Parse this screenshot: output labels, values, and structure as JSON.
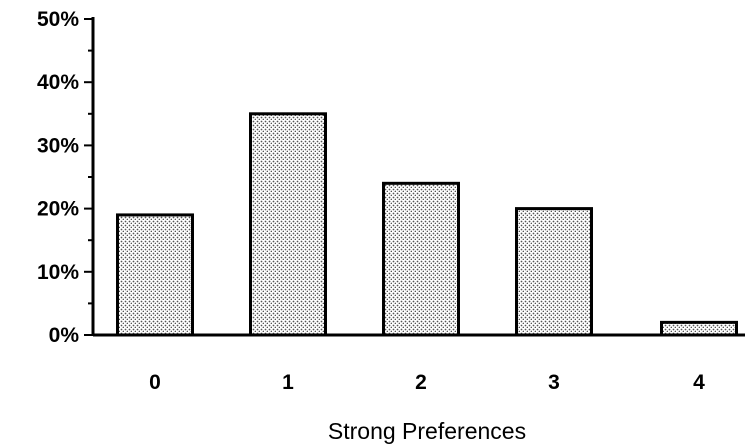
{
  "chart_data": {
    "type": "bar",
    "categories": [
      "0",
      "1",
      "2",
      "3",
      "4"
    ],
    "values": [
      19,
      35,
      24,
      20,
      2
    ],
    "xlabel": "Strong Preferences",
    "ylabel": "",
    "ylim": [
      0,
      50
    ],
    "yticks": [
      "0%",
      "10%",
      "20%",
      "30%",
      "40%",
      "50%"
    ],
    "grid": false,
    "bar_fill": "dotted-gray",
    "colors": {
      "bar_stroke": "#000000",
      "bar_dot": "#555555",
      "background": "#ffffff"
    }
  }
}
